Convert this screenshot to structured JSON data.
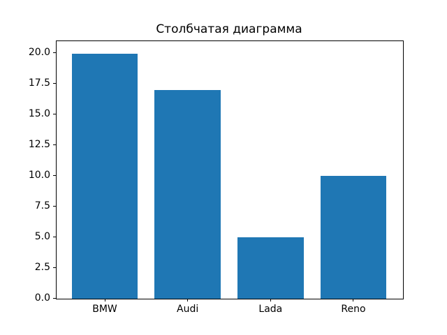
{
  "figure": {
    "background": "#ffffff",
    "axes_edge_color": "#000000",
    "text_color": "#000000"
  },
  "chart_data": {
    "type": "bar",
    "title": "Столбчатая диаграмма",
    "categories": [
      "BMW",
      "Audi",
      "Lada",
      "Reno"
    ],
    "values": [
      20,
      17,
      5,
      10
    ],
    "bar_color": "#1f77b4",
    "bar_width": 0.8,
    "xlabel": "",
    "ylabel": "",
    "xlim": [
      -0.59,
      3.59
    ],
    "ylim": [
      0,
      21
    ],
    "yticks": [
      0.0,
      2.5,
      5.0,
      7.5,
      10.0,
      12.5,
      15.0,
      17.5,
      20.0
    ],
    "ytick_format_decimals": 1,
    "grid": false,
    "legend": "none"
  }
}
